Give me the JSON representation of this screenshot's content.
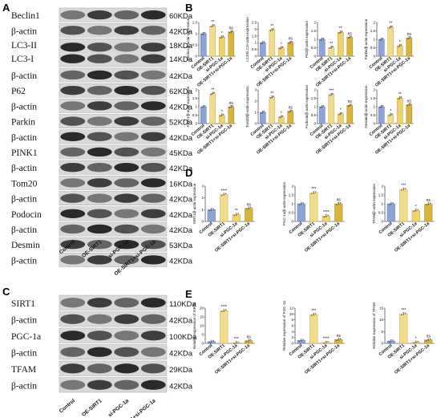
{
  "panels": {
    "a": "A",
    "b": "B",
    "c": "C",
    "d": "D",
    "e": "E"
  },
  "blotA": {
    "lanes": [
      "Control",
      "OE-SIRT1",
      "si-PGC-1a",
      "OE-SIRT1+si-PGC-1a"
    ],
    "rows": [
      {
        "label": "Beclin1",
        "kda": "60KDa"
      },
      {
        "label": "β-actin",
        "kda": "42KDa"
      },
      {
        "label": "LC3-II",
        "kda": "18KDa",
        "label2": "LC3-I",
        "kda2": "14KDa"
      },
      {
        "label": "β-actin",
        "kda": "42KDa"
      },
      {
        "label": "P62",
        "kda": "62KDa"
      },
      {
        "label": "β-actin",
        "kda": "42KDa"
      },
      {
        "label": "Parkin",
        "kda": "52KDa"
      },
      {
        "label": "β-actin",
        "kda": "42KDa"
      },
      {
        "label": "PINK1",
        "kda": "45KDa"
      },
      {
        "label": "β-actin",
        "kda": "42KDa"
      },
      {
        "label": "Tom20",
        "kda": "16KDa"
      },
      {
        "label": "β-actin",
        "kda": "42KDa"
      },
      {
        "label": "Podocin",
        "kda": "42KDa"
      },
      {
        "label": "β-actin",
        "kda": "42KDa"
      },
      {
        "label": "Desmin",
        "kda": "53KDa"
      },
      {
        "label": "β-actin",
        "kda": "42KDa"
      }
    ]
  },
  "blotC": {
    "lanes": [
      "Control",
      "OE-SIRT1",
      "si-PGC-1a",
      "OE-SIRT1+si-PGC-1a"
    ],
    "rows": [
      {
        "label": "SIRT1",
        "kda": "110KDa"
      },
      {
        "label": "β-actin",
        "kda": "42KDa"
      },
      {
        "label": "PGC-1a",
        "kda": "100KDa"
      },
      {
        "label": "β-actin",
        "kda": "42KDa"
      },
      {
        "label": "TFAM",
        "kda": "29KDa"
      },
      {
        "label": "β-actin",
        "kda": "42KDa"
      }
    ]
  },
  "colors": {
    "control": "#8ea4d4",
    "oe": "#f1dc8c",
    "si": "#efd36a",
    "combo": "#d9b43a",
    "axis": "#222222"
  },
  "chart_data": [
    {
      "panel": "B",
      "type": "bar",
      "categories": [
        "Control",
        "OE-SIRT1",
        "si-PGC-1a",
        "OE-SIRT1+si-PGC-1a"
      ],
      "ylabel": "Beclin1/β-actin expression",
      "ylim": [
        0,
        1.5
      ],
      "yticks": [
        0,
        0.5,
        1.0,
        1.5
      ],
      "values": [
        1.0,
        1.35,
        0.85,
        1.08
      ],
      "sig": [
        "",
        "**",
        "*",
        "ns"
      ]
    },
    {
      "panel": "B",
      "type": "bar",
      "categories": [
        "Control",
        "OE-SIRT1",
        "si-PGC-1a",
        "OE-SIRT1+si-PGC-1a"
      ],
      "ylabel": "LC3II/LC3I-actin expression",
      "ylim": [
        0,
        2.5
      ],
      "yticks": [
        0,
        0.5,
        1.0,
        1.5,
        2.0,
        2.5
      ],
      "values": [
        1.0,
        1.95,
        0.62,
        1.02
      ],
      "sig": [
        "",
        "**",
        "*",
        "ns"
      ]
    },
    {
      "panel": "B",
      "type": "bar",
      "categories": [
        "Control",
        "OE-SIRT1",
        "si-PGC-1a",
        "OE-SIRT1+si-PGC-1a"
      ],
      "ylabel": "P62/β-actin expression",
      "ylim": [
        0,
        2.0
      ],
      "yticks": [
        0,
        0.5,
        1.0,
        1.5,
        2.0
      ],
      "values": [
        1.0,
        0.52,
        1.42,
        1.12
      ],
      "sig": [
        "",
        "**",
        "**",
        "ns"
      ]
    },
    {
      "panel": "B",
      "type": "bar",
      "categories": [
        "Control",
        "OE-SIRT1",
        "si-PGC-1a",
        "OE-SIRT1+si-PGC-1a"
      ],
      "ylabel": "Parkin/β-actin expression",
      "ylim": [
        0,
        2.0
      ],
      "yticks": [
        0,
        0.5,
        1.0,
        1.5,
        2.0
      ],
      "values": [
        1.0,
        1.72,
        0.62,
        1.08
      ],
      "sig": [
        "",
        "**",
        "*",
        "ns"
      ]
    },
    {
      "panel": "B",
      "type": "bar",
      "categories": [
        "Control",
        "OE-SIRT1",
        "si-PGC-1a",
        "OE-SIRT1+si-PGC-1a"
      ],
      "ylabel": "PINK1/β-actin expression",
      "ylim": [
        0,
        2.0
      ],
      "yticks": [
        0,
        0.5,
        1.0,
        1.5,
        2.0
      ],
      "values": [
        1.0,
        1.78,
        0.5,
        1.0
      ],
      "sig": [
        "",
        "**",
        "*",
        "ns"
      ]
    },
    {
      "panel": "B",
      "type": "bar",
      "categories": [
        "Control",
        "OE-SIRT1",
        "si-PGC-1a",
        "OE-SIRT1+si-PGC-1a"
      ],
      "ylabel": "Tom20/β-actin expression",
      "ylim": [
        0,
        3.0
      ],
      "yticks": [
        0,
        1.0,
        2.0,
        3.0
      ],
      "values": [
        1.0,
        2.35,
        0.6,
        1.1
      ],
      "sig": [
        "",
        "**",
        "*",
        "ns"
      ]
    },
    {
      "panel": "B",
      "type": "bar",
      "categories": [
        "Control",
        "OE-SIRT1",
        "si-PGC-1a",
        "OE-SIRT1+si-PGC-1a"
      ],
      "ylabel": "Podocin/β-actin expression",
      "ylim": [
        0,
        2.0
      ],
      "yticks": [
        0,
        0.5,
        1.0,
        1.5,
        2.0
      ],
      "values": [
        1.0,
        1.72,
        0.58,
        1.08
      ],
      "sig": [
        "",
        "***",
        "*",
        "ns"
      ]
    },
    {
      "panel": "B",
      "type": "bar",
      "categories": [
        "Control",
        "OE-SIRT1",
        "si-PGC-1a",
        "OE-SIRT1+si-PGC-1a"
      ],
      "ylabel": "Desmin/β-actin expression",
      "ylim": [
        0,
        2.0
      ],
      "yticks": [
        0,
        0.5,
        1.0,
        1.5,
        2.0
      ],
      "values": [
        1.0,
        0.52,
        1.52,
        1.12
      ],
      "sig": [
        "",
        "*",
        "**",
        "ns"
      ]
    },
    {
      "panel": "D",
      "type": "bar",
      "categories": [
        "Control",
        "OE-SIRT1",
        "si-PGC-1a",
        "OE-SIRT1+si-PGC-1a"
      ],
      "ylabel": "SIRT1/β-actin expression",
      "ylim": [
        0,
        3
      ],
      "yticks": [
        0,
        1,
        2,
        3
      ],
      "values": [
        1.0,
        2.28,
        0.58,
        1.12
      ],
      "sig": [
        "",
        "****",
        "**",
        "ns"
      ]
    },
    {
      "panel": "D",
      "type": "bar",
      "categories": [
        "Control",
        "OE-SIRT1",
        "si-PGC-1a",
        "OE-SIRT1+si-PGC-1a"
      ],
      "ylabel": "PGC-1a/β-actin expression",
      "ylim": [
        0,
        2.0
      ],
      "yticks": [
        0,
        0.5,
        1.0,
        1.5,
        2.0
      ],
      "values": [
        1.0,
        1.62,
        0.3,
        1.0
      ],
      "sig": [
        "",
        "***",
        "****",
        "ns"
      ]
    },
    {
      "panel": "D",
      "type": "bar",
      "categories": [
        "Control",
        "OE-SIRT1",
        "si-PGC-1a",
        "OE-SIRT1+si-PGC-1a"
      ],
      "ylabel": "TFAM/β-actin expression",
      "ylim": [
        0,
        2.0
      ],
      "yticks": [
        0,
        0.5,
        1.0,
        1.5,
        2.0
      ],
      "values": [
        1.0,
        1.82,
        0.62,
        0.98
      ],
      "sig": [
        "",
        "***",
        "*",
        "ns"
      ]
    },
    {
      "panel": "E",
      "type": "bar",
      "categories": [
        "Control",
        "OE-SIRT1",
        "si-PGC-1a",
        "OE-SIRT1+si-PGC-1a"
      ],
      "ylabel": "Relative expression of SIRT1",
      "ylim": [
        0,
        20
      ],
      "yticks": [
        0,
        5,
        10,
        15,
        20
      ],
      "values": [
        1.0,
        18.5,
        0.3,
        1.5
      ],
      "sig": [
        "",
        "****",
        "***",
        "ns"
      ]
    },
    {
      "panel": "E",
      "type": "bar",
      "categories": [
        "Control",
        "OE-SIRT1",
        "si-PGC-1a",
        "OE-SIRT1+si-PGC-1a"
      ],
      "ylabel": "Relative expression of PGC-1a",
      "ylim": [
        0,
        12
      ],
      "yticks": [
        0,
        2,
        4,
        6,
        8,
        10,
        12
      ],
      "values": [
        1.0,
        9.8,
        0.3,
        1.3
      ],
      "sig": [
        "",
        "***",
        "****",
        "ns"
      ]
    },
    {
      "panel": "E",
      "type": "bar",
      "categories": [
        "Control",
        "OE-SIRT1",
        "si-PGC-1a",
        "OE-SIRT1+si-PGC-1a"
      ],
      "ylabel": "Relative expression of TFAM",
      "ylim": [
        0,
        15
      ],
      "yticks": [
        0,
        5,
        10,
        15
      ],
      "values": [
        1.0,
        12.5,
        0.45,
        1.5
      ],
      "sig": [
        "",
        "***",
        "*",
        "ns"
      ]
    }
  ]
}
